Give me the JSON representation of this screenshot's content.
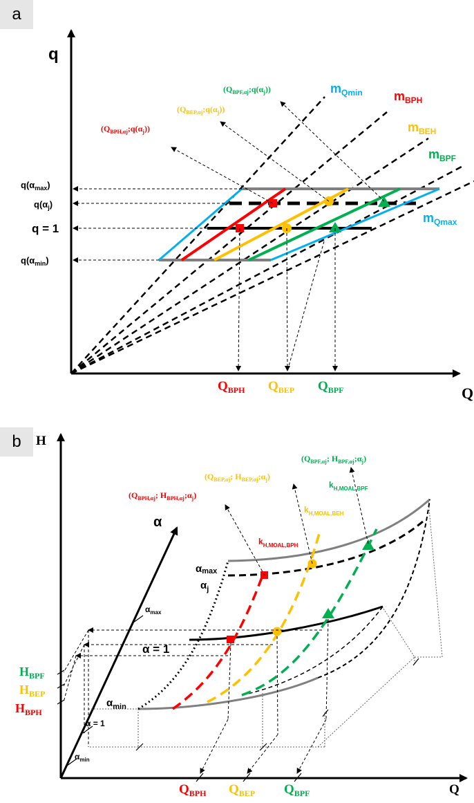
{
  "colors": {
    "bph": "#ff0000",
    "bep": "#ffc000",
    "bpf": "#00b050",
    "qmin": "#00b0f0",
    "gray": "#808080",
    "black": "#000000"
  },
  "panel_a": {
    "badge": "a",
    "y_axis": "q",
    "x_axis": "Q",
    "ticks": {
      "q_amax": [
        "q(α",
        "max",
        ")"
      ],
      "q_aj": [
        "q(α",
        "j",
        ")"
      ],
      "q_one": "q = 1",
      "q_amin": [
        "q(α",
        "min",
        ")"
      ]
    },
    "x_ticks": {
      "bph": [
        "Q",
        "BPH"
      ],
      "bep": [
        "Q",
        "BEP"
      ],
      "bpf": [
        "Q",
        "BPF"
      ]
    },
    "lines": {
      "qmin": [
        "m",
        "Qmin"
      ],
      "bph": [
        "m",
        "BPH"
      ],
      "beh": [
        "m",
        "BEH"
      ],
      "bpf": [
        "m",
        "BPF"
      ],
      "qmax": [
        "m",
        "Qmax"
      ]
    },
    "callouts": {
      "bpf": [
        "(Q",
        "BPF,αj",
        ";q(α",
        "j",
        "))"
      ],
      "bep": [
        "(Q",
        "BEP,αj",
        ";q(α",
        "j",
        "))"
      ],
      "bph": [
        "(Q",
        "BPH,αj",
        ";q(α",
        "j",
        "))"
      ]
    }
  },
  "panel_b": {
    "badge": "b",
    "y_axis": "H",
    "x_axis": "Q",
    "alpha_axis": "α",
    "alpha_ticks": {
      "max": [
        "α",
        "max"
      ],
      "one": "α = 1",
      "min": [
        "α",
        "min"
      ]
    },
    "curve_labels": {
      "amax": [
        "α",
        "max"
      ],
      "aj": [
        "α",
        "j"
      ],
      "a1": "α = 1",
      "amin": [
        "α",
        "min"
      ]
    },
    "h_ticks": {
      "bpf": [
        "H",
        "BPF"
      ],
      "bep": [
        "H",
        "BEP"
      ],
      "bph": [
        "H",
        "BPH"
      ]
    },
    "x_ticks": {
      "bph": [
        "Q",
        "BPH"
      ],
      "bep": [
        "Q",
        "BEP"
      ],
      "bpf": [
        "Q",
        "BPF"
      ]
    },
    "k_labels": {
      "bph": [
        "k",
        "H,MOAL,BPH"
      ],
      "beh": [
        "k",
        "H,MOAL,BEH"
      ],
      "bpf": [
        "k",
        "H,MOAL,BPF"
      ]
    },
    "callouts": {
      "bpf": [
        "(Q",
        "BPF,αj",
        "; H",
        "BPF,αj",
        ";α",
        "j",
        ")"
      ],
      "bep": [
        "(Q",
        "BEP,αj",
        "; H",
        "BEP,αj",
        ";α",
        "j",
        ")"
      ],
      "bph": [
        "(Q",
        "BPH,αj",
        "; H",
        "BPH,αj",
        ";α",
        "j",
        ")"
      ]
    }
  }
}
